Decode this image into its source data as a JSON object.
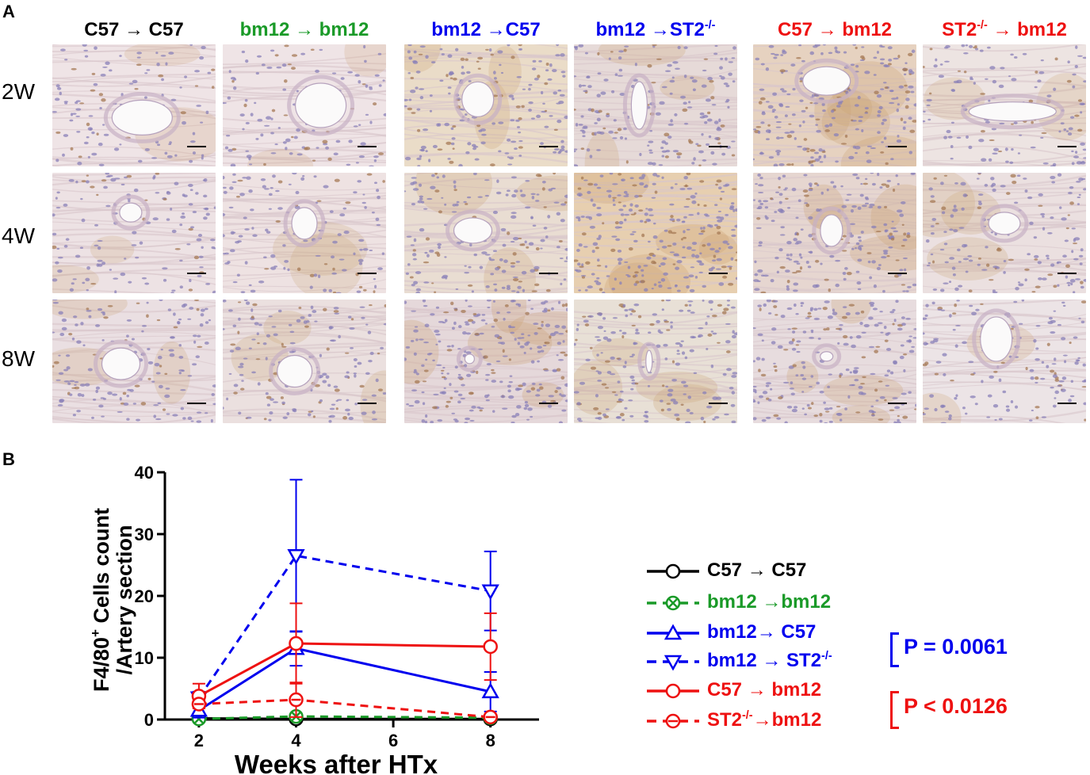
{
  "panel_a": {
    "letter": "A",
    "columns": [
      {
        "label": "C57 → C57",
        "color": "#000000"
      },
      {
        "label": "bm12 → bm12",
        "color": "#1a9a28"
      },
      {
        "label": "bm12 →C57",
        "color": "#0000ee"
      },
      {
        "label_pre": "bm12 →ST2",
        "label_sup": "-/-",
        "color": "#0000ee"
      },
      {
        "label": "C57 → bm12",
        "color": "#ee1111"
      },
      {
        "label_pre": "ST2",
        "label_sup": "-/-",
        "label_post": " → bm12",
        "color": "#ee1111"
      }
    ],
    "rows": [
      "2W",
      "4W",
      "8W"
    ]
  },
  "panel_b": {
    "letter": "B",
    "legend": [
      {
        "label": "C57 → C57",
        "color": "#000000"
      },
      {
        "label": "bm12 →bm12",
        "color": "#1a9a28"
      },
      {
        "label": "bm12→ C57",
        "color": "#0000ee"
      },
      {
        "label_pre": "bm12 → ST2",
        "label_sup": "-/-",
        "color": "#0000ee"
      },
      {
        "label": "C57 → bm12",
        "color": "#ee1111"
      },
      {
        "label_pre": "ST2",
        "label_sup": "-/-",
        "label_post": "→bm12",
        "color": "#ee1111"
      }
    ],
    "pvalues": [
      {
        "text": "P = 0.0061",
        "color": "#0000ee"
      },
      {
        "text": "P < 0.0126",
        "color": "#ee1111"
      }
    ]
  },
  "chart_data": {
    "type": "line",
    "xlabel": "Weeks after HTx",
    "ylabel_line1_pre": "F4/80",
    "ylabel_line1_sup": "+",
    "ylabel_line1_post": " Cells count",
    "ylabel_line2": "/Artery section",
    "x": [
      2,
      4,
      8
    ],
    "xticks": [
      2,
      4,
      6,
      8
    ],
    "yticks": [
      0,
      10,
      20,
      30,
      40
    ],
    "xlim": [
      1.3,
      9.0
    ],
    "ylim": [
      0,
      40
    ],
    "series": [
      {
        "name": "C57 → C57",
        "color": "#000000",
        "dashed": false,
        "marker": "circle",
        "values": [
          0.2,
          0.1,
          0.1
        ],
        "err": [
          0.2,
          0.2,
          0.2
        ]
      },
      {
        "name": "bm12 →bm12",
        "color": "#1a9a28",
        "dashed": true,
        "marker": "circle-x",
        "values": [
          0.1,
          0.5,
          0.3
        ],
        "err": [
          0.2,
          0.3,
          0.2
        ]
      },
      {
        "name": "bm12→ C57",
        "color": "#0000ee",
        "dashed": false,
        "marker": "triangle-up",
        "values": [
          1.5,
          11.5,
          4.5
        ],
        "err": [
          1.2,
          2.8,
          3.2
        ]
      },
      {
        "name": "bm12 → ST2-/-",
        "color": "#0000ee",
        "dashed": true,
        "marker": "triangle-down",
        "values": [
          3.5,
          26.5,
          20.8
        ],
        "err": [
          1.0,
          12.3,
          6.4
        ]
      },
      {
        "name": "C57 → bm12",
        "color": "#ee1111",
        "dashed": false,
        "marker": "circle",
        "values": [
          3.8,
          12.3,
          11.8
        ],
        "err": [
          2.0,
          6.5,
          5.4
        ]
      },
      {
        "name": "ST2-/-→bm12",
        "color": "#ee1111",
        "dashed": true,
        "marker": "circle-minus",
        "values": [
          2.5,
          3.2,
          0.4
        ],
        "err": [
          0.6,
          2.8,
          0.3
        ]
      }
    ]
  }
}
